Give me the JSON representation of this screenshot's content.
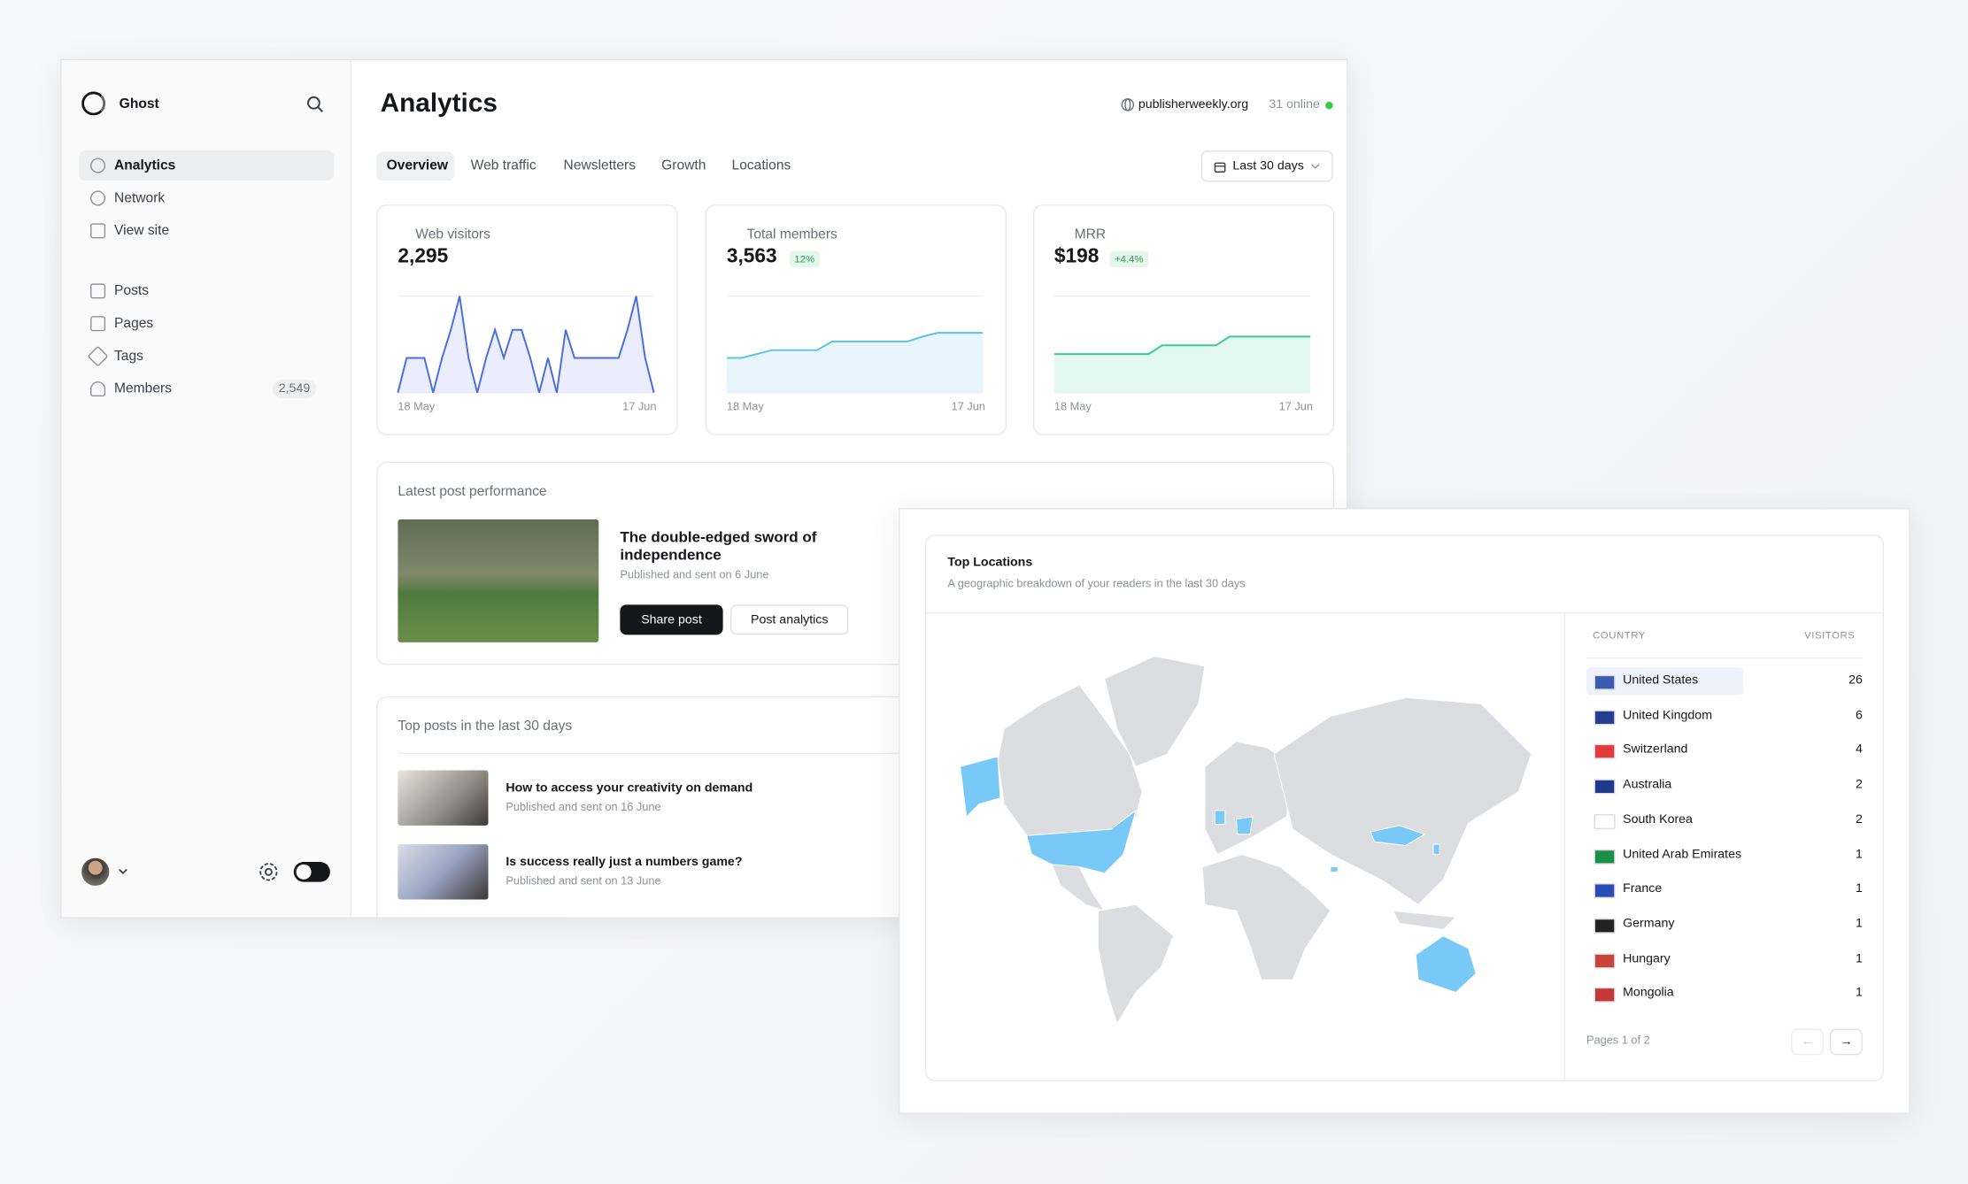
{
  "sidebar": {
    "brand": "Ghost",
    "nav": [
      "Analytics",
      "Network",
      "View site"
    ],
    "content_nav": [
      "Posts",
      "Pages",
      "Tags",
      "Members"
    ],
    "members_count": "2,549"
  },
  "header": {
    "title": "Analytics",
    "site": "publisherweekly.org",
    "online": "31 online"
  },
  "tabs": [
    "Overview",
    "Web traffic",
    "Newsletters",
    "Growth",
    "Locations"
  ],
  "date_range": "Last 30 days",
  "kpis": [
    {
      "label": "Web visitors",
      "value": "2,295",
      "start": "18 May",
      "end": "17 Jun",
      "color": "#4a6fdc",
      "fill": "#e6e9fb",
      "ylim": [
        0,
        100
      ],
      "trend": [
        0,
        36,
        36,
        36,
        0,
        36,
        65,
        100,
        36,
        0,
        36,
        65,
        36,
        65,
        65,
        36,
        0,
        36,
        0,
        65,
        36,
        36,
        36,
        36,
        36,
        36,
        65,
        100,
        36,
        0
      ]
    },
    {
      "label": "Total members",
      "value": "3,563",
      "badge": "12%",
      "start": "18 May",
      "end": "17 Jun",
      "color": "#5bc3e6",
      "fill": "#e3f3fb",
      "ylim": [
        0,
        100
      ],
      "trend": [
        36,
        36,
        40,
        44,
        44,
        44,
        44,
        53,
        53,
        53,
        53,
        53,
        53,
        58,
        62,
        62,
        62,
        62
      ]
    },
    {
      "label": "MRR",
      "value": "$198",
      "badge": "+4.4%",
      "start": "18 May",
      "end": "17 Jun",
      "color": "#3ec99b",
      "fill": "#dcf6ec",
      "ylim": [
        0,
        100
      ],
      "trend": [
        40,
        40,
        40,
        40,
        40,
        40,
        40,
        40,
        49,
        49,
        49,
        49,
        49,
        58,
        58,
        58,
        58,
        58,
        58,
        58
      ]
    }
  ],
  "latest_post": {
    "heading": "Latest post performance",
    "title": "The double-edged sword of independence",
    "subtitle": "Published and sent on 6 June",
    "share": "Share post",
    "analytics": "Post analytics"
  },
  "top_posts": {
    "heading": "Top posts in the last 30 days",
    "posts": [
      {
        "title": "How to access your creativity on demand",
        "subtitle": "Published and sent on 16 June"
      },
      {
        "title": "Is success really just a numbers game?",
        "subtitle": "Published and sent on 13 June"
      }
    ]
  },
  "locations": {
    "title": "Top Locations",
    "subtitle": "A geographic breakdown of your readers in the last 30 days",
    "columns": [
      "COUNTRY",
      "VISITORS"
    ],
    "rows": [
      [
        "United States",
        "26"
      ],
      [
        "United Kingdom",
        "6"
      ],
      [
        "Switzerland",
        "4"
      ],
      [
        "Australia",
        "2"
      ],
      [
        "South Korea",
        "2"
      ],
      [
        "United Arab Emirates",
        "1"
      ],
      [
        "France",
        "1"
      ],
      [
        "Germany",
        "1"
      ],
      [
        "Hungary",
        "1"
      ],
      [
        "Mongolia",
        "1"
      ]
    ],
    "pagination": "Pages 1 of 2"
  }
}
